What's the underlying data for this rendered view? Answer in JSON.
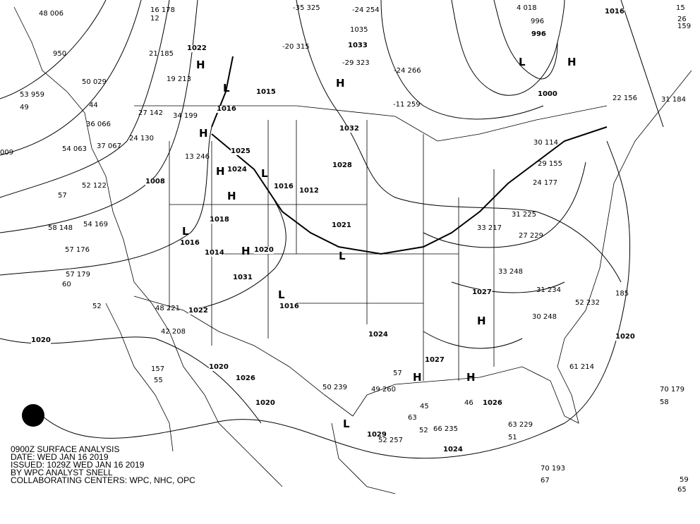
{
  "caption": {
    "line1": "0900Z SURFACE ANALYSIS",
    "line2": "DATE: WED JAN 16 2019",
    "line3": "ISSUED: 1029Z WED JAN 16 2019",
    "line4": "BY WPC ANALYST SNELL",
    "line5": "COLLABORATING CENTERS: WPC, NHC, OPC"
  },
  "logo": "NOAA",
  "isobar_labels": [
    "1020",
    "1020",
    "1020",
    "1020",
    "1024",
    "1016",
    "1026",
    "1022",
    "1022",
    "1016",
    "1014",
    "1018",
    "1008",
    "1025",
    "1024",
    "1016",
    "1012",
    "1021",
    "1028",
    "1032",
    "1033",
    "1015",
    "1016",
    "1000",
    "996",
    "1027",
    "1027",
    "1026",
    "1024",
    "1029",
    "1020",
    "1031",
    "1016"
  ],
  "pressure_centers": [
    "H",
    "H",
    "H",
    "H",
    "L",
    "L",
    "L",
    "L",
    "H",
    "H",
    "H",
    "L",
    "H",
    "H",
    "L",
    "L",
    "H"
  ],
  "stations": [
    "48 006",
    "950",
    "53 959",
    "49",
    "009",
    "50 029",
    "44",
    "36 066",
    "54 063",
    "37 067",
    "52 122",
    "57",
    "58 148",
    "54 169",
    "57 176",
    "57 179",
    "60",
    "52",
    "48 221",
    "42 208",
    "157",
    "55",
    "16 178",
    "12",
    "21 185",
    "19 213",
    "27 142",
    "34 199",
    "24 130",
    "13 246",
    "-35 325",
    "-24 254",
    "-20 315",
    "-29 323",
    "-24 266",
    "-11 259",
    "1035",
    "996",
    "4 018",
    "15",
    "26 159",
    "31 184",
    "22 156",
    "30 114",
    "29 155",
    "24 177",
    "31 225",
    "33 217",
    "27 229",
    "33 248",
    "31 234",
    "30 248",
    "52 232",
    "185",
    "61 214",
    "70 179",
    "58",
    "63 229",
    "66 235",
    "52 257",
    "51",
    "50 239",
    "49 260",
    "45",
    "63",
    "52",
    "57",
    "46",
    "70 193",
    "67",
    "59",
    "65"
  ]
}
